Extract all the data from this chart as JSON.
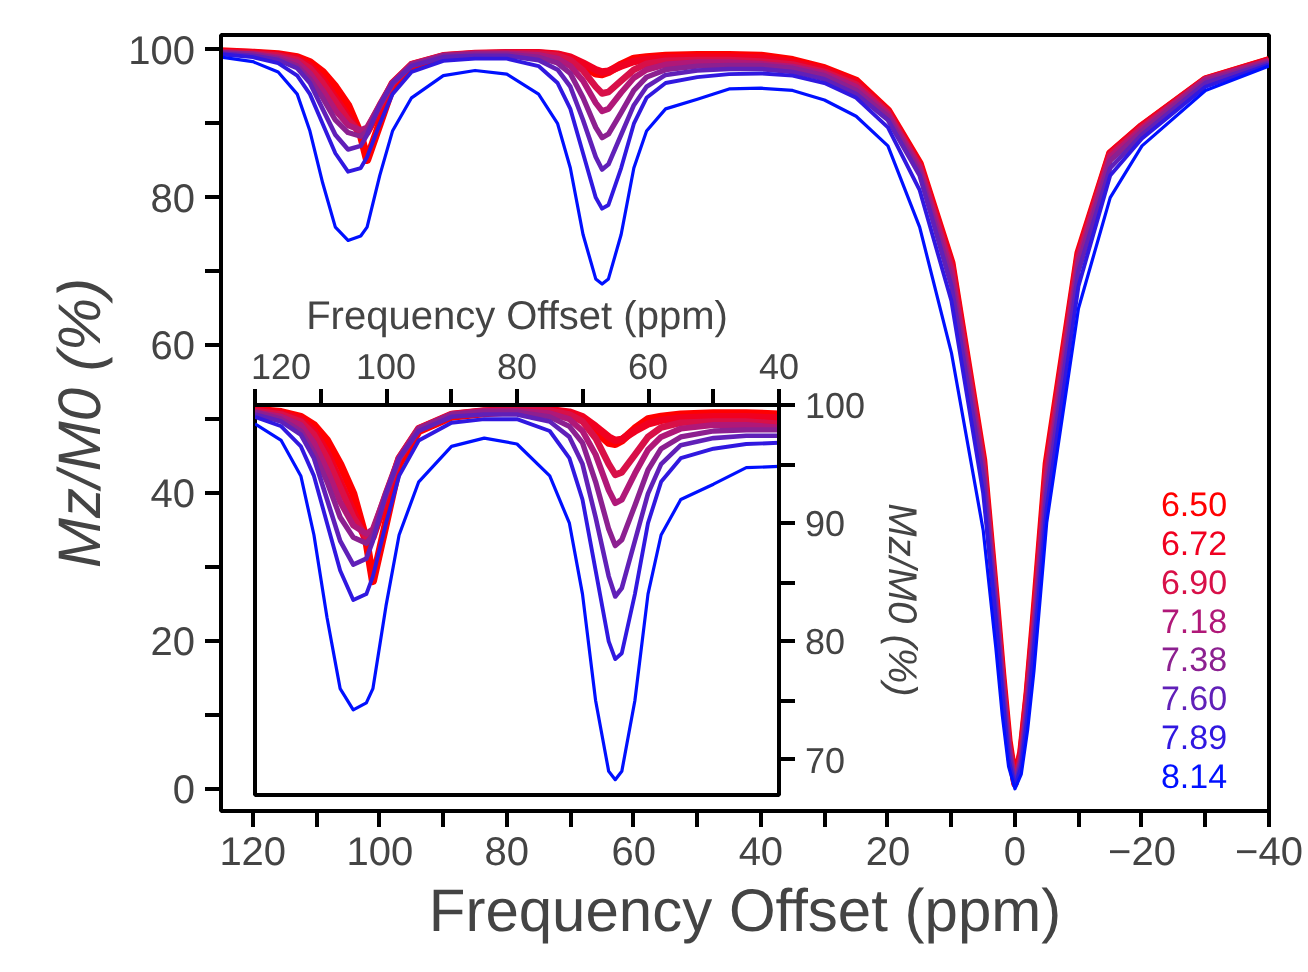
{
  "chart_data": [
    {
      "type": "line",
      "xlabel": "Frequency Offset (ppm)",
      "ylabel": "Mz/M0 (%)",
      "legend": "bottom right",
      "x": [
        125,
        120,
        116,
        113,
        111,
        109,
        107,
        105,
        103,
        102,
        100,
        98,
        95,
        90,
        85,
        80,
        75,
        72,
        70,
        68,
        66,
        65,
        64,
        62,
        60,
        58,
        55,
        50,
        45,
        40,
        35,
        30,
        25,
        20,
        15,
        10,
        5,
        3,
        2,
        1,
        0,
        -1,
        -2,
        -3,
        -5,
        -10,
        -15,
        -20,
        -30,
        -40
      ],
      "xlim": [
        125,
        -40
      ],
      "ylim": [
        -3,
        102
      ],
      "xticks": [
        120,
        {
          "value": 110,
          "label": null
        },
        100,
        {
          "value": 90,
          "label": null
        },
        80,
        {
          "value": 70,
          "label": null
        },
        60,
        {
          "value": 50,
          "label": null
        },
        40,
        {
          "value": 30,
          "label": null
        },
        20,
        {
          "value": 10,
          "label": null
        },
        0,
        {
          "value": -10,
          "label": null
        },
        {
          "value": -20,
          "label": "−20"
        },
        {
          "value": -30,
          "label": null
        },
        {
          "value": -40,
          "label": "−40"
        }
      ],
      "yticks": [
        0,
        {
          "value": 10,
          "label": null
        },
        20,
        {
          "value": 30,
          "label": null
        },
        40,
        {
          "value": 50,
          "label": null
        },
        60,
        {
          "value": 70,
          "label": null
        },
        80,
        {
          "value": 90,
          "label": null
        },
        100
      ],
      "series": [
        {
          "name": "6.50",
          "color": "#ff0000",
          "values": [
            99.8,
            99.6,
            99.4,
            99,
            98.3,
            97,
            95,
            92.5,
            88.5,
            85.1,
            90,
            95,
            97.8,
            99,
            99.3,
            99.5,
            99.5,
            99.3,
            98.8,
            97.8,
            96.8,
            96.7,
            97,
            98,
            98.8,
            99,
            99.2,
            99.3,
            99.3,
            99.2,
            98.6,
            97.5,
            95.8,
            91.8,
            84.6,
            71.2,
            44.5,
            25.5,
            15.5,
            6.5,
            1,
            5,
            13,
            23,
            44,
            72.5,
            86,
            89.7,
            96,
            98.6
          ]
        },
        {
          "name": "6.72",
          "color": "#f00020",
          "values": [
            99.7,
            99.6,
            99.3,
            98.8,
            97.8,
            96,
            93.5,
            91,
            88.5,
            88.8,
            92,
            95.5,
            98,
            99.2,
            99.5,
            99.6,
            99.6,
            99.4,
            99,
            98.2,
            97.3,
            97,
            97.1,
            97.8,
            98.4,
            98.7,
            98.9,
            99,
            99,
            98.9,
            98.3,
            97.3,
            95.6,
            91.7,
            84.4,
            71,
            44,
            25,
            15,
            6,
            0.7,
            5,
            13,
            22.5,
            43.5,
            72.3,
            86,
            89.7,
            96,
            98.6
          ]
        },
        {
          "name": "6.90",
          "color": "#d81048",
          "values": [
            99.7,
            99.5,
            99.2,
            98.6,
            97.5,
            95.5,
            93,
            90.5,
            88.8,
            89.2,
            92.5,
            95.5,
            98,
            99.2,
            99.5,
            99.6,
            99.5,
            99.2,
            98.6,
            97.2,
            95,
            94.1,
            94.3,
            95.8,
            97.3,
            98.1,
            98.5,
            98.6,
            98.6,
            98.4,
            98,
            97,
            95.3,
            91.5,
            84.2,
            70.5,
            44,
            25,
            15,
            6,
            0.7,
            4.5,
            12.5,
            22,
            43,
            72,
            85.8,
            89.5,
            96,
            98.5
          ]
        },
        {
          "name": "7.18",
          "color": "#b01878",
          "values": [
            99.6,
            99.4,
            99,
            98.3,
            96.8,
            94.5,
            91.8,
            89.8,
            89.1,
            89.5,
            92.5,
            95.5,
            98,
            99.2,
            99.5,
            99.5,
            99.3,
            98.8,
            97.8,
            95.8,
            92.8,
            91.7,
            92,
            94.2,
            96.2,
            97.3,
            98,
            98.3,
            98.3,
            98.1,
            97.7,
            96.8,
            95,
            91.3,
            84,
            70,
            43.5,
            25,
            15,
            6,
            0.6,
            4,
            12,
            21.5,
            42,
            71.5,
            85.5,
            89.3,
            96,
            98.5
          ]
        },
        {
          "name": "7.38",
          "color": "#8c2090",
          "values": [
            99.6,
            99.4,
            98.8,
            97.8,
            96,
            93.5,
            90.5,
            88.8,
            88.3,
            89,
            92.5,
            95.5,
            98,
            99.2,
            99.4,
            99.4,
            99,
            98.2,
            96.8,
            93.5,
            89.5,
            88.1,
            88.6,
            91.5,
            94.5,
            96.3,
            97.3,
            97.8,
            97.9,
            97.9,
            97.5,
            96.5,
            94.5,
            91,
            83.5,
            69,
            43,
            24.5,
            14.5,
            5.5,
            0.6,
            4,
            11.5,
            21,
            41,
            71,
            85,
            89,
            95.8,
            98.3
          ]
        },
        {
          "name": "7.60",
          "color": "#6020b8",
          "values": [
            99.5,
            99.2,
            98.6,
            97.5,
            95.5,
            92,
            88.5,
            86.5,
            87,
            88.5,
            92.5,
            95.5,
            97.8,
            99,
            99.2,
            99.2,
            98.6,
            97.3,
            95,
            90.5,
            85.5,
            83.8,
            84.5,
            88.5,
            92.5,
            95,
            96.6,
            97.2,
            97.4,
            97.4,
            97,
            96,
            94,
            90.5,
            83,
            68,
            42,
            24,
            14,
            5,
            0.5,
            3.5,
            11,
            20,
            40,
            70,
            84,
            88.5,
            95.5,
            98.2
          ]
        },
        {
          "name": "7.89",
          "color": "#3018e0",
          "values": [
            99.4,
            99,
            98.2,
            96.5,
            94,
            90,
            86,
            83.5,
            84,
            85.5,
            90,
            94,
            97,
            98.5,
            98.8,
            98.8,
            97.8,
            95.5,
            92,
            86,
            80,
            78.5,
            79,
            84,
            90,
            93.5,
            95.5,
            96.3,
            96.7,
            96.8,
            96.5,
            95.5,
            93.5,
            89.5,
            81,
            66,
            40,
            23,
            13,
            4,
            0.3,
            3,
            10,
            19,
            38,
            68,
            83,
            88,
            95,
            98
          ]
        },
        {
          "name": "8.14",
          "color": "#0010ff",
          "values": [
            99,
            98.4,
            97,
            94,
            89,
            82,
            76,
            74.2,
            74.8,
            76,
            83,
            89,
            93.5,
            96.5,
            97.2,
            96.7,
            94,
            90,
            84,
            75,
            69,
            68.3,
            69,
            75,
            84,
            89,
            92,
            93.3,
            94.7,
            94.8,
            94.5,
            93.2,
            91,
            87,
            76,
            59,
            35,
            19,
            10,
            3,
            0,
            2,
            8,
            16,
            36,
            65,
            80,
            87,
            94.5,
            97.8
          ]
        }
      ]
    },
    {
      "type": "line",
      "xlabel": "Frequency Offset (ppm)",
      "ylabel": "Mz/M0 (%)",
      "x": [
        120,
        116,
        113,
        111,
        109,
        107,
        105,
        103,
        102,
        100,
        98,
        95,
        90,
        85,
        80,
        75,
        72,
        70,
        68,
        66,
        65,
        64,
        62,
        60,
        58,
        55,
        50,
        45,
        40
      ],
      "xlim": [
        120,
        40
      ],
      "ylim": [
        67,
        100
      ],
      "xticks": [
        120,
        {
          "value": 110,
          "label": null
        },
        100,
        {
          "value": 90,
          "label": null
        },
        80,
        {
          "value": 70,
          "label": null
        },
        60,
        {
          "value": 50,
          "label": null
        },
        40
      ],
      "yticks": [
        70,
        {
          "value": 75,
          "label": null
        },
        80,
        {
          "value": 85,
          "label": null
        },
        90,
        {
          "value": 95,
          "label": null
        },
        100
      ],
      "series": [
        {
          "color": "#ff0000",
          "values": [
            99.6,
            99.4,
            99,
            98.3,
            97,
            95,
            92.5,
            88.5,
            85.1,
            90,
            95,
            97.8,
            99,
            99.3,
            99.5,
            99.5,
            99.3,
            98.8,
            97.8,
            96.8,
            96.7,
            97,
            98,
            98.8,
            99,
            99.2,
            99.3,
            99.3,
            99.2
          ]
        },
        {
          "color": "#f00020",
          "values": [
            99.6,
            99.3,
            98.8,
            97.8,
            96,
            93.5,
            91,
            88.5,
            88.8,
            92,
            95.5,
            98,
            99.2,
            99.5,
            99.6,
            99.6,
            99.4,
            99,
            98.2,
            97.3,
            97,
            97.1,
            97.8,
            98.4,
            98.7,
            98.9,
            99,
            99,
            98.9
          ]
        },
        {
          "color": "#d81048",
          "values": [
            99.5,
            99.2,
            98.6,
            97.5,
            95.5,
            93,
            90.5,
            88.8,
            89.2,
            92.5,
            95.5,
            98,
            99.2,
            99.5,
            99.6,
            99.5,
            99.2,
            98.6,
            97.2,
            95,
            94.1,
            94.3,
            95.8,
            97.3,
            98.1,
            98.5,
            98.6,
            98.6,
            98.4
          ]
        },
        {
          "color": "#b01878",
          "values": [
            99.4,
            99,
            98.3,
            96.8,
            94.5,
            91.8,
            89.8,
            89.1,
            89.5,
            92.5,
            95.5,
            98,
            99.2,
            99.5,
            99.5,
            99.3,
            98.8,
            97.8,
            95.8,
            92.8,
            91.7,
            92,
            94.2,
            96.2,
            97.3,
            98,
            98.3,
            98.3,
            98.1
          ]
        },
        {
          "color": "#8c2090",
          "values": [
            99.4,
            98.8,
            97.8,
            96,
            93.5,
            90.5,
            88.8,
            88.3,
            89,
            92.5,
            95.5,
            98,
            99.2,
            99.4,
            99.4,
            99,
            98.2,
            96.8,
            93.5,
            89.5,
            88.1,
            88.6,
            91.5,
            94.5,
            96.3,
            97.3,
            97.8,
            97.9,
            97.9
          ]
        },
        {
          "color": "#6020b8",
          "values": [
            99.2,
            98.6,
            97.5,
            95.5,
            92,
            88.5,
            86.5,
            87,
            88.5,
            92.5,
            95.5,
            97.8,
            99,
            99.2,
            99.2,
            98.6,
            97.3,
            95,
            90.5,
            85.5,
            83.8,
            84.5,
            88.5,
            92.5,
            95,
            96.6,
            97.2,
            97.4,
            97.4
          ]
        },
        {
          "color": "#3018e0",
          "values": [
            99,
            98.2,
            96.5,
            94,
            90,
            86,
            83.5,
            84,
            85.5,
            90,
            94,
            97,
            98.5,
            98.8,
            98.8,
            97.8,
            95.5,
            92,
            86,
            80,
            78.5,
            79,
            84,
            90,
            93.5,
            95.5,
            96.3,
            96.7,
            96.8
          ]
        },
        {
          "color": "#0010ff",
          "values": [
            98.4,
            97,
            94,
            89,
            82,
            76,
            74.2,
            74.8,
            76,
            83,
            89,
            93.5,
            96.5,
            97.2,
            96.7,
            94,
            90,
            84,
            75,
            69,
            68.3,
            69,
            75,
            84,
            89,
            92,
            93.3,
            94.7,
            94.8
          ]
        }
      ]
    }
  ]
}
